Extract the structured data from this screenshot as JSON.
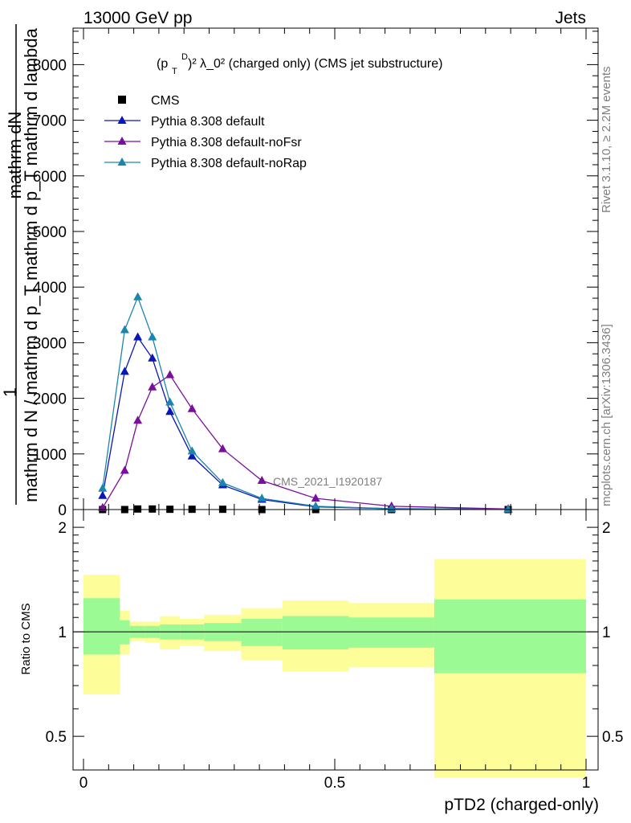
{
  "header": {
    "left": "13000 GeV pp",
    "right": "Jets"
  },
  "side_text": {
    "rivet": "Rivet 3.1.10, ≥ 2.2M events",
    "mcplots": "mcplots.cern.ch [arXiv:1306.3436]"
  },
  "main_plot": {
    "title_sup": "D",
    "title_sub": "T",
    "title_p": "(p",
    "title_rest": ")² λ_0² (charged only) (CMS jet substructure)",
    "analysis_label": "CMS_2021_I1920187",
    "ylabel_num": "mathrm dN",
    "ylabel_one": "1",
    "ylabel_den": "mathrm d N / mathrm d p_T mathrm d p_T mathrm d lambda"
  },
  "ratio_plot": {
    "ylabel": "Ratio to CMS"
  },
  "xlabel": "pTD2 (charged-only)",
  "colors": {
    "cms": "#000000",
    "default": "#0a16b6",
    "noFsr": "#7a0f9e",
    "noRap": "#1a86b0",
    "band_inner": "#9cfa94",
    "band_outer": "#fdfe99"
  },
  "chart_data": [
    {
      "type": "line",
      "xlim": [
        0,
        1
      ],
      "ylim": [
        0,
        8000
      ],
      "yticks": [
        0,
        1000,
        2000,
        3000,
        4000,
        5000,
        6000,
        7000,
        8000
      ],
      "ytick_labels": [
        "0",
        "1000",
        "2000",
        "3000",
        "4000",
        "5000",
        "6000",
        "7000",
        "8000"
      ],
      "legend_position": "top-left",
      "series": [
        {
          "name": "CMS",
          "marker": "square",
          "x": [
            0.038,
            0.082,
            0.108,
            0.137,
            0.172,
            0.216,
            0.277,
            0.355,
            0.462,
            0.613,
            0.845
          ],
          "y": [
            0,
            0,
            10,
            10,
            5,
            5,
            5,
            0,
            0,
            0,
            0
          ]
        },
        {
          "name": "Pythia 8.308 default",
          "marker": "triangle",
          "x": [
            0.038,
            0.082,
            0.108,
            0.137,
            0.172,
            0.216,
            0.277,
            0.355,
            0.462,
            0.613,
            0.845
          ],
          "y": [
            250,
            2480,
            3100,
            2720,
            1760,
            960,
            440,
            180,
            50,
            15,
            5
          ]
        },
        {
          "name": "Pythia 8.308 default-noFsr",
          "marker": "triangle",
          "x": [
            0.038,
            0.082,
            0.108,
            0.137,
            0.172,
            0.216,
            0.277,
            0.355,
            0.462,
            0.613,
            0.845
          ],
          "y": [
            30,
            700,
            1600,
            2200,
            2420,
            1810,
            1090,
            520,
            200,
            60,
            10
          ]
        },
        {
          "name": "Pythia 8.308 default-noRap",
          "marker": "triangle",
          "x": [
            0.038,
            0.082,
            0.108,
            0.137,
            0.172,
            0.216,
            0.277,
            0.355,
            0.462,
            0.613,
            0.845
          ],
          "y": [
            380,
            3230,
            3820,
            3100,
            1930,
            1050,
            480,
            200,
            60,
            15,
            5
          ]
        }
      ]
    },
    {
      "type": "area",
      "xlim": [
        0,
        1
      ],
      "ylim": [
        0.4,
        2.25
      ],
      "yticks": [
        0.5,
        1,
        2
      ],
      "ytick_labels": [
        "0.5",
        "1",
        "2"
      ],
      "xticks": [
        0,
        0.5,
        1
      ],
      "xtick_labels": [
        "0",
        "0.5",
        "1"
      ],
      "reference_line": 1,
      "bins": [
        {
          "x0": 0.0,
          "x1": 0.072,
          "inner": [
            0.86,
            1.25
          ],
          "outer": [
            0.66,
            1.46
          ]
        },
        {
          "x0": 0.072,
          "x1": 0.092,
          "inner": [
            0.92,
            1.08
          ],
          "outer": [
            0.86,
            1.15
          ]
        },
        {
          "x0": 0.092,
          "x1": 0.122,
          "inner": [
            0.96,
            1.04
          ],
          "outer": [
            0.94,
            1.07
          ]
        },
        {
          "x0": 0.122,
          "x1": 0.152,
          "inner": [
            0.96,
            1.04
          ],
          "outer": [
            0.93,
            1.07
          ]
        },
        {
          "x0": 0.152,
          "x1": 0.192,
          "inner": [
            0.95,
            1.05
          ],
          "outer": [
            0.89,
            1.11
          ]
        },
        {
          "x0": 0.192,
          "x1": 0.24,
          "inner": [
            0.95,
            1.05
          ],
          "outer": [
            0.91,
            1.09
          ]
        },
        {
          "x0": 0.24,
          "x1": 0.314,
          "inner": [
            0.94,
            1.06
          ],
          "outer": [
            0.88,
            1.12
          ]
        },
        {
          "x0": 0.314,
          "x1": 0.396,
          "inner": [
            0.91,
            1.09
          ],
          "outer": [
            0.83,
            1.17
          ]
        },
        {
          "x0": 0.396,
          "x1": 0.528,
          "inner": [
            0.89,
            1.11
          ],
          "outer": [
            0.77,
            1.23
          ]
        },
        {
          "x0": 0.528,
          "x1": 0.698,
          "inner": [
            0.9,
            1.1
          ],
          "outer": [
            0.79,
            1.21
          ]
        },
        {
          "x0": 0.698,
          "x1": 1.0,
          "inner": [
            0.76,
            1.24
          ],
          "outer": [
            0.38,
            1.62
          ]
        }
      ]
    }
  ]
}
